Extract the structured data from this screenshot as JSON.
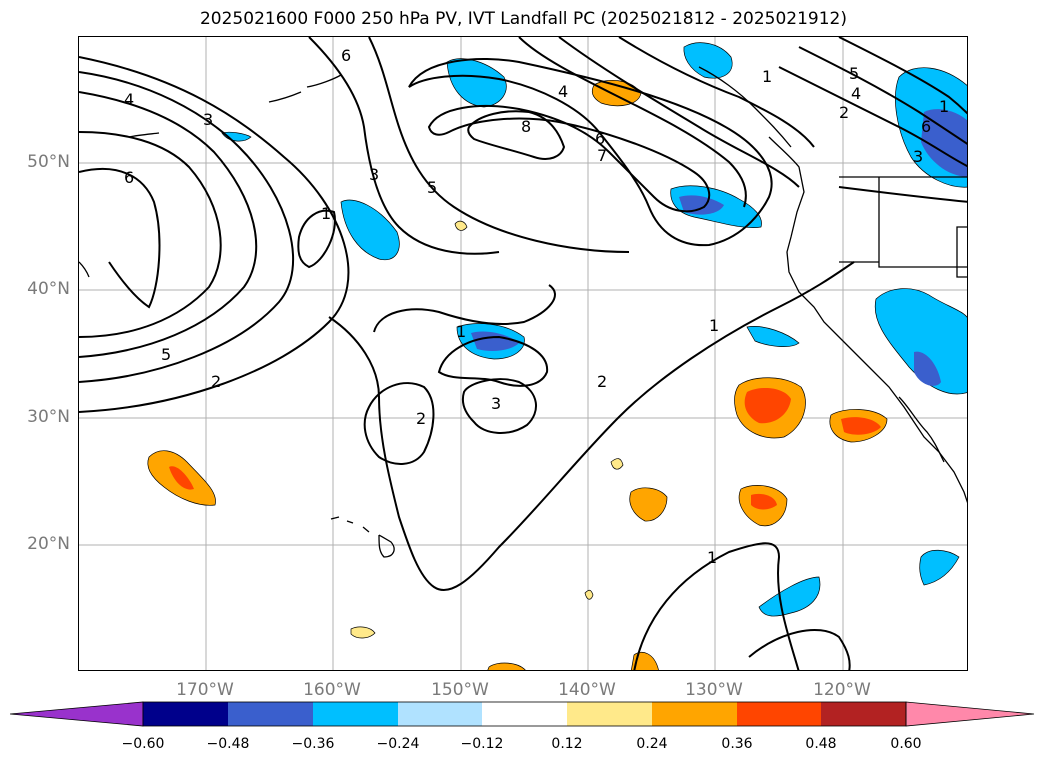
{
  "title": "2025021600 F000 250 hPa PV, IVT Landfall PC (2025021812 - 2025021912)",
  "map": {
    "lat_labels": [
      "50°N",
      "40°N",
      "30°N",
      "20°N"
    ],
    "lon_labels": [
      "170°W",
      "160°W",
      "150°W",
      "140°W",
      "130°W",
      "120°W"
    ],
    "gridlines": true,
    "pv_contour_labels": [
      "6",
      "4",
      "3",
      "6",
      "1",
      "3",
      "5",
      "8",
      "4",
      "6",
      "7",
      "5",
      "4",
      "2",
      "6",
      "3",
      "1",
      "1",
      "5",
      "2",
      "1",
      "2",
      "3",
      "2",
      "1",
      "1"
    ]
  },
  "colorbar": {
    "ticks": [
      "−0.60",
      "−0.48",
      "−0.36",
      "−0.24",
      "−0.12",
      "0.12",
      "0.24",
      "0.36",
      "0.48",
      "0.60"
    ],
    "colors": [
      "#9932cc",
      "#00008b",
      "#3a5fcd",
      "#00bfff",
      "#b0e2ff",
      "#ffffff",
      "#ffe98a",
      "#ffa500",
      "#ff4500",
      "#b22222",
      "#ff88aa"
    ],
    "extend": "both"
  }
}
